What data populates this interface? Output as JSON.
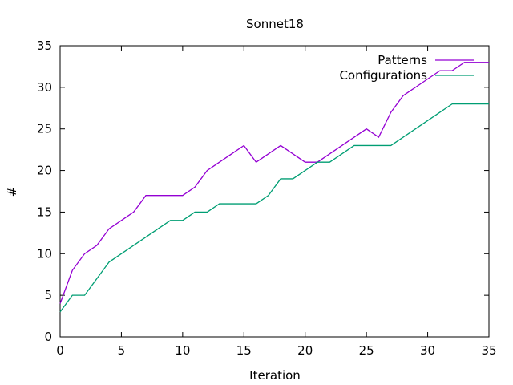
{
  "chart_data": {
    "type": "line",
    "title": "Sonnet18",
    "xlabel": "Iteration",
    "ylabel": "#",
    "xlim": [
      0,
      35
    ],
    "ylim": [
      0,
      35
    ],
    "xticks": [
      0,
      5,
      10,
      15,
      20,
      25,
      30,
      35
    ],
    "yticks": [
      0,
      5,
      10,
      15,
      20,
      25,
      30,
      35
    ],
    "grid": false,
    "legend_position": "top-right",
    "series": [
      {
        "name": "Patterns",
        "color": "#9400d3",
        "points": [
          [
            0,
            4
          ],
          [
            1,
            8
          ],
          [
            2,
            10
          ],
          [
            3,
            11
          ],
          [
            4,
            13
          ],
          [
            5,
            14
          ],
          [
            6,
            15
          ],
          [
            7,
            17
          ],
          [
            8,
            17
          ],
          [
            9,
            17
          ],
          [
            10,
            17
          ],
          [
            11,
            18
          ],
          [
            12,
            20
          ],
          [
            13,
            21
          ],
          [
            14,
            22
          ],
          [
            15,
            23
          ],
          [
            16,
            21
          ],
          [
            17,
            22
          ],
          [
            18,
            23
          ],
          [
            19,
            22
          ],
          [
            20,
            21
          ],
          [
            21,
            21
          ],
          [
            22,
            22
          ],
          [
            23,
            23
          ],
          [
            24,
            24
          ],
          [
            25,
            25
          ],
          [
            26,
            24
          ],
          [
            27,
            27
          ],
          [
            28,
            29
          ],
          [
            29,
            30
          ],
          [
            30,
            31
          ],
          [
            31,
            32
          ],
          [
            32,
            32
          ],
          [
            33,
            33
          ],
          [
            34,
            33
          ],
          [
            35,
            33
          ]
        ]
      },
      {
        "name": "Configurations",
        "color": "#009e73",
        "points": [
          [
            0,
            3
          ],
          [
            1,
            5
          ],
          [
            2,
            5
          ],
          [
            3,
            7
          ],
          [
            4,
            9
          ],
          [
            5,
            10
          ],
          [
            6,
            11
          ],
          [
            7,
            12
          ],
          [
            8,
            13
          ],
          [
            9,
            14
          ],
          [
            10,
            14
          ],
          [
            11,
            15
          ],
          [
            12,
            15
          ],
          [
            13,
            16
          ],
          [
            14,
            16
          ],
          [
            15,
            16
          ],
          [
            16,
            16
          ],
          [
            17,
            17
          ],
          [
            18,
            19
          ],
          [
            19,
            19
          ],
          [
            20,
            20
          ],
          [
            21,
            21
          ],
          [
            22,
            21
          ],
          [
            23,
            22
          ],
          [
            24,
            23
          ],
          [
            25,
            23
          ],
          [
            26,
            23
          ],
          [
            27,
            23
          ],
          [
            28,
            24
          ],
          [
            29,
            25
          ],
          [
            30,
            26
          ],
          [
            31,
            27
          ],
          [
            32,
            28
          ],
          [
            33,
            28
          ],
          [
            34,
            28
          ],
          [
            35,
            28
          ]
        ]
      }
    ]
  }
}
